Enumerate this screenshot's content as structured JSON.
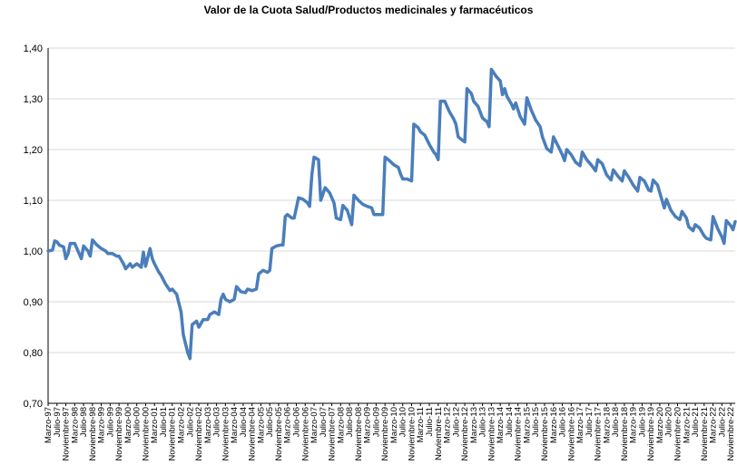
{
  "chart_data": {
    "type": "line",
    "title": "Valor de la Cuota Salud/Productos medicinales y farmacéuticos",
    "xlabel": "",
    "ylabel": "",
    "ylim": [
      0.7,
      1.4
    ],
    "y_ticks": [
      "0,70",
      "0,80",
      "0,90",
      "1,00",
      "1,10",
      "1,20",
      "1,30",
      "1,40"
    ],
    "x_tick_labels": [
      "Marzo-97",
      "Julio-97",
      "Noviembre-97",
      "Marzo-98",
      "Julio-98",
      "Noviembre-98",
      "Marzo-99",
      "Julio-99",
      "Noviembre-99",
      "Marzo-00",
      "Julio-00",
      "Noviembre-00",
      "Marzo-01",
      "Julio-01",
      "Noviembre-01",
      "Marzo-02",
      "Julio-02",
      "Noviembre-02",
      "Marzo-03",
      "Julio-03",
      "Noviembre-03",
      "Marzo-04",
      "Julio-04",
      "Noviembre-04",
      "Marzo-05",
      "Julio-05",
      "Noviembre-05",
      "Marzo-06",
      "Julio-06",
      "Noviembre-06",
      "Marzo-07",
      "Julio-07",
      "Noviembre-07",
      "Marzo-08",
      "Julio-08",
      "Noviembre-08",
      "Marzo-09",
      "Julio-09",
      "Noviembre-09",
      "Marzo-10",
      "Julio-10",
      "Noviembre-10",
      "Marzo-11",
      "Julio-11",
      "Noviembre-11",
      "Marzo-12",
      "Julio-12",
      "Noviembre-12",
      "Marzo-13",
      "Julio-13",
      "Noviembre-13",
      "Marzo-14",
      "Julio-14",
      "Noviembre-14",
      "Marzo-15",
      "Julio-15",
      "Noviembre-15",
      "Marzo-16",
      "Julio-16",
      "Noviembre-16",
      "Marzo-17",
      "Julio-17",
      "Noviembre-17",
      "Marzo-18",
      "Julio-18",
      "Noviembre-18",
      "Marzo-19",
      "Julio-19",
      "Noviembre-19",
      "Marzo-20",
      "Julio-20",
      "Noviembre-20",
      "Marzo-21",
      "Julio-21",
      "Noviembre-21",
      "Marzo-22",
      "Julio-22",
      "Noviembre-22"
    ],
    "series": [
      {
        "color": "#4a7ebb",
        "x_start": "1997-03",
        "x_end": "2023-01",
        "points": [
          [
            "1997-03",
            1.0
          ],
          [
            "1997-05",
            1.002
          ],
          [
            "1997-06",
            1.02
          ],
          [
            "1997-07",
            1.018
          ],
          [
            "1997-08",
            1.012
          ],
          [
            "1997-10",
            1.008
          ],
          [
            "1997-11",
            0.985
          ],
          [
            "1997-12",
            0.995
          ],
          [
            "1998-01",
            1.015
          ],
          [
            "1998-03",
            1.015
          ],
          [
            "1998-05",
            0.995
          ],
          [
            "1998-06",
            0.985
          ],
          [
            "1998-07",
            1.01
          ],
          [
            "1998-09",
            1.0
          ],
          [
            "1998-10",
            0.99
          ],
          [
            "1998-11",
            1.022
          ],
          [
            "1999-01",
            1.012
          ],
          [
            "1999-03",
            1.005
          ],
          [
            "1999-05",
            1.0
          ],
          [
            "1999-06",
            0.995
          ],
          [
            "1999-08",
            0.995
          ],
          [
            "1999-10",
            0.99
          ],
          [
            "1999-11",
            0.99
          ],
          [
            "2000-01",
            0.975
          ],
          [
            "2000-02",
            0.965
          ],
          [
            "2000-04",
            0.975
          ],
          [
            "2000-05",
            0.968
          ],
          [
            "2000-07",
            0.975
          ],
          [
            "2000-09",
            0.968
          ],
          [
            "2000-10",
            0.998
          ],
          [
            "2000-11",
            0.97
          ],
          [
            "2001-01",
            1.005
          ],
          [
            "2001-02",
            0.985
          ],
          [
            "2001-03",
            0.975
          ],
          [
            "2001-05",
            0.958
          ],
          [
            "2001-06",
            0.952
          ],
          [
            "2001-08",
            0.935
          ],
          [
            "2001-10",
            0.922
          ],
          [
            "2001-11",
            0.925
          ],
          [
            "2002-01",
            0.915
          ],
          [
            "2002-03",
            0.88
          ],
          [
            "2002-04",
            0.835
          ],
          [
            "2002-06",
            0.8
          ],
          [
            "2002-07",
            0.788
          ],
          [
            "2002-08",
            0.855
          ],
          [
            "2002-10",
            0.862
          ],
          [
            "2002-11",
            0.85
          ],
          [
            "2003-01",
            0.865
          ],
          [
            "2003-03",
            0.865
          ],
          [
            "2003-04",
            0.875
          ],
          [
            "2003-06",
            0.88
          ],
          [
            "2003-08",
            0.875
          ],
          [
            "2003-09",
            0.905
          ],
          [
            "2003-10",
            0.915
          ],
          [
            "2003-11",
            0.905
          ],
          [
            "2004-01",
            0.9
          ],
          [
            "2004-03",
            0.905
          ],
          [
            "2004-04",
            0.93
          ],
          [
            "2004-06",
            0.92
          ],
          [
            "2004-08",
            0.918
          ],
          [
            "2004-09",
            0.925
          ],
          [
            "2004-11",
            0.922
          ],
          [
            "2005-01",
            0.925
          ],
          [
            "2005-02",
            0.955
          ],
          [
            "2005-04",
            0.962
          ],
          [
            "2005-06",
            0.958
          ],
          [
            "2005-07",
            0.962
          ],
          [
            "2005-08",
            1.005
          ],
          [
            "2005-10",
            1.01
          ],
          [
            "2005-12",
            1.012
          ],
          [
            "2006-01",
            1.012
          ],
          [
            "2006-02",
            1.068
          ],
          [
            "2006-03",
            1.072
          ],
          [
            "2006-05",
            1.065
          ],
          [
            "2006-06",
            1.065
          ],
          [
            "2006-08",
            1.105
          ],
          [
            "2006-10",
            1.102
          ],
          [
            "2006-12",
            1.095
          ],
          [
            "2007-01",
            1.088
          ],
          [
            "2007-02",
            1.15
          ],
          [
            "2007-03",
            1.185
          ],
          [
            "2007-05",
            1.18
          ],
          [
            "2007-06",
            1.1
          ],
          [
            "2007-08",
            1.125
          ],
          [
            "2007-10",
            1.115
          ],
          [
            "2007-12",
            1.095
          ],
          [
            "2008-01",
            1.065
          ],
          [
            "2008-03",
            1.062
          ],
          [
            "2008-04",
            1.09
          ],
          [
            "2008-06",
            1.08
          ],
          [
            "2008-08",
            1.052
          ],
          [
            "2008-09",
            1.11
          ],
          [
            "2008-11",
            1.1
          ],
          [
            "2009-01",
            1.092
          ],
          [
            "2009-03",
            1.088
          ],
          [
            "2009-05",
            1.085
          ],
          [
            "2009-06",
            1.072
          ],
          [
            "2009-08",
            1.072
          ],
          [
            "2009-10",
            1.072
          ],
          [
            "2009-11",
            1.185
          ],
          [
            "2010-01",
            1.178
          ],
          [
            "2010-03",
            1.17
          ],
          [
            "2010-05",
            1.165
          ],
          [
            "2010-06",
            1.152
          ],
          [
            "2010-07",
            1.142
          ],
          [
            "2010-09",
            1.142
          ],
          [
            "2010-11",
            1.138
          ],
          [
            "2010-12",
            1.25
          ],
          [
            "2011-02",
            1.243
          ],
          [
            "2011-03",
            1.235
          ],
          [
            "2011-05",
            1.228
          ],
          [
            "2011-07",
            1.21
          ],
          [
            "2011-09",
            1.195
          ],
          [
            "2011-10",
            1.19
          ],
          [
            "2011-11",
            1.18
          ],
          [
            "2011-12",
            1.295
          ],
          [
            "2012-02",
            1.295
          ],
          [
            "2012-04",
            1.275
          ],
          [
            "2012-06",
            1.26
          ],
          [
            "2012-07",
            1.25
          ],
          [
            "2012-08",
            1.225
          ],
          [
            "2012-10",
            1.218
          ],
          [
            "2012-11",
            1.215
          ],
          [
            "2012-12",
            1.32
          ],
          [
            "2013-02",
            1.31
          ],
          [
            "2013-03",
            1.295
          ],
          [
            "2013-05",
            1.285
          ],
          [
            "2013-07",
            1.262
          ],
          [
            "2013-09",
            1.255
          ],
          [
            "2013-10",
            1.245
          ],
          [
            "2013-11",
            1.358
          ],
          [
            "2014-01",
            1.345
          ],
          [
            "2014-03",
            1.335
          ],
          [
            "2014-04",
            1.308
          ],
          [
            "2014-05",
            1.32
          ],
          [
            "2014-06",
            1.305
          ],
          [
            "2014-08",
            1.29
          ],
          [
            "2014-09",
            1.28
          ],
          [
            "2014-10",
            1.292
          ],
          [
            "2014-12",
            1.265
          ],
          [
            "2015-02",
            1.25
          ],
          [
            "2015-03",
            1.302
          ],
          [
            "2015-05",
            1.278
          ],
          [
            "2015-07",
            1.258
          ],
          [
            "2015-09",
            1.245
          ],
          [
            "2015-10",
            1.225
          ],
          [
            "2015-12",
            1.202
          ],
          [
            "2016-02",
            1.195
          ],
          [
            "2016-03",
            1.225
          ],
          [
            "2016-05",
            1.208
          ],
          [
            "2016-07",
            1.19
          ],
          [
            "2016-08",
            1.178
          ],
          [
            "2016-09",
            1.2
          ],
          [
            "2016-11",
            1.19
          ],
          [
            "2017-01",
            1.175
          ],
          [
            "2017-03",
            1.168
          ],
          [
            "2017-04",
            1.195
          ],
          [
            "2017-06",
            1.18
          ],
          [
            "2017-08",
            1.17
          ],
          [
            "2017-10",
            1.158
          ],
          [
            "2017-11",
            1.18
          ],
          [
            "2018-01",
            1.172
          ],
          [
            "2018-03",
            1.15
          ],
          [
            "2018-05",
            1.14
          ],
          [
            "2018-06",
            1.16
          ],
          [
            "2018-08",
            1.148
          ],
          [
            "2018-10",
            1.138
          ],
          [
            "2018-11",
            1.158
          ],
          [
            "2019-01",
            1.145
          ],
          [
            "2019-03",
            1.13
          ],
          [
            "2019-05",
            1.118
          ],
          [
            "2019-06",
            1.145
          ],
          [
            "2019-08",
            1.138
          ],
          [
            "2019-10",
            1.12
          ],
          [
            "2019-11",
            1.118
          ],
          [
            "2019-12",
            1.14
          ],
          [
            "2020-02",
            1.13
          ],
          [
            "2020-04",
            1.1
          ],
          [
            "2020-05",
            1.085
          ],
          [
            "2020-06",
            1.102
          ],
          [
            "2020-08",
            1.08
          ],
          [
            "2020-10",
            1.068
          ],
          [
            "2020-12",
            1.062
          ],
          [
            "2021-01",
            1.078
          ],
          [
            "2021-03",
            1.065
          ],
          [
            "2021-04",
            1.048
          ],
          [
            "2021-06",
            1.04
          ],
          [
            "2021-07",
            1.052
          ],
          [
            "2021-09",
            1.045
          ],
          [
            "2021-11",
            1.03
          ],
          [
            "2021-12",
            1.025
          ],
          [
            "2022-02",
            1.022
          ],
          [
            "2022-03",
            1.068
          ],
          [
            "2022-05",
            1.045
          ],
          [
            "2022-07",
            1.028
          ],
          [
            "2022-08",
            1.015
          ],
          [
            "2022-09",
            1.06
          ],
          [
            "2022-11",
            1.05
          ],
          [
            "2022-12",
            1.042
          ],
          [
            "2023-01",
            1.058
          ]
        ]
      }
    ],
    "grid": {
      "horizontal": true,
      "vertical": false
    },
    "legend": "none"
  }
}
